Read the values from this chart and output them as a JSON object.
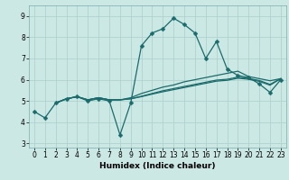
{
  "title": "",
  "xlabel": "Humidex (Indice chaleur)",
  "xlim": [
    -0.5,
    23.5
  ],
  "ylim": [
    2.8,
    9.5
  ],
  "yticks": [
    3,
    4,
    5,
    6,
    7,
    8,
    9
  ],
  "xticks": [
    0,
    1,
    2,
    3,
    4,
    5,
    6,
    7,
    8,
    9,
    10,
    11,
    12,
    13,
    14,
    15,
    16,
    17,
    18,
    19,
    20,
    21,
    22,
    23
  ],
  "bg_color": "#cce8e5",
  "grid_color": "#aacfcc",
  "line_color": "#1a6b6b",
  "line1_x": [
    0,
    1,
    2,
    3,
    4,
    5,
    6,
    7,
    8,
    9,
    10,
    11,
    12,
    13,
    14,
    15,
    16,
    17,
    18,
    19,
    20,
    21,
    22,
    23
  ],
  "line1_y": [
    4.5,
    4.2,
    4.9,
    5.1,
    5.2,
    5.0,
    5.1,
    5.0,
    3.4,
    4.9,
    7.6,
    8.2,
    8.4,
    8.9,
    8.6,
    8.2,
    7.0,
    7.8,
    6.5,
    6.2,
    6.1,
    5.8,
    5.4,
    6.0
  ],
  "line2_x": [
    2,
    3,
    4,
    5,
    6,
    7,
    8,
    9,
    10,
    11,
    12,
    13,
    14,
    15,
    16,
    17,
    18,
    19,
    20,
    21,
    22,
    23
  ],
  "line2_y": [
    4.9,
    5.1,
    5.2,
    5.05,
    5.15,
    5.05,
    5.05,
    5.15,
    5.35,
    5.5,
    5.65,
    5.75,
    5.9,
    6.0,
    6.1,
    6.2,
    6.3,
    6.4,
    6.15,
    6.05,
    5.95,
    6.05
  ],
  "line3_x": [
    2,
    3,
    4,
    5,
    6,
    7,
    8,
    9,
    10,
    11,
    12,
    13,
    14,
    15,
    16,
    17,
    18,
    19,
    20,
    21,
    22,
    23
  ],
  "line3_y": [
    4.9,
    5.1,
    5.2,
    5.05,
    5.15,
    5.05,
    5.05,
    5.1,
    5.22,
    5.35,
    5.48,
    5.58,
    5.68,
    5.78,
    5.88,
    5.98,
    6.02,
    6.12,
    6.06,
    5.96,
    5.78,
    6.05
  ],
  "line4_x": [
    2,
    3,
    4,
    5,
    6,
    7,
    8,
    9,
    10,
    11,
    12,
    13,
    14,
    15,
    16,
    17,
    18,
    19,
    20,
    21,
    22,
    23
  ],
  "line4_y": [
    4.9,
    5.1,
    5.2,
    5.05,
    5.15,
    5.05,
    5.05,
    5.1,
    5.2,
    5.32,
    5.43,
    5.53,
    5.63,
    5.73,
    5.83,
    5.93,
    5.97,
    6.07,
    6.02,
    5.92,
    5.74,
    6.05
  ],
  "marker": "D",
  "markersize": 2.5,
  "linewidth": 0.9,
  "tick_fontsize": 5.5,
  "xlabel_fontsize": 6.5
}
